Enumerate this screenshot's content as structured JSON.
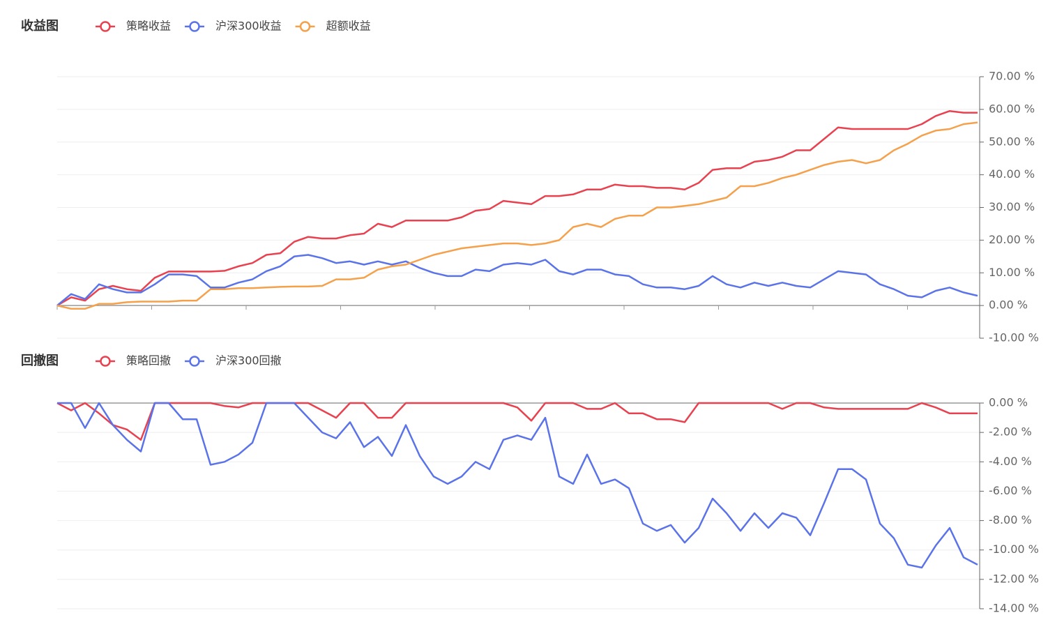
{
  "chart_data": [
    {
      "type": "line",
      "title": "收益图",
      "series": [
        {
          "name": "策略收益",
          "color": "#e8414f",
          "values": [
            0,
            2.5,
            1.5,
            5,
            6,
            5,
            4.5,
            8.5,
            10.4,
            10.4,
            10.4,
            10.4,
            10.6,
            12,
            13,
            15.5,
            16,
            19.5,
            21,
            20.5,
            20.5,
            21.5,
            22,
            25,
            24,
            26,
            26,
            26,
            26,
            27,
            29,
            29.5,
            32,
            31.5,
            31,
            33.5,
            33.5,
            34,
            35.5,
            35.5,
            37,
            36.5,
            36.5,
            36,
            36,
            35.5,
            37.5,
            41.5,
            42,
            42,
            44,
            44.5,
            45.5,
            47.5,
            47.5,
            51,
            54.5,
            54,
            54,
            54,
            54,
            54,
            55.5,
            58,
            59.5,
            59,
            59
          ]
        },
        {
          "name": "沪深300收益",
          "color": "#5b73e8",
          "values": [
            0,
            3.5,
            2,
            6.5,
            5,
            4,
            4,
            6.5,
            9.5,
            9.5,
            9,
            5.5,
            5.5,
            7,
            8,
            10.5,
            12,
            15,
            15.5,
            14.5,
            13,
            13.5,
            12.5,
            13.5,
            12.5,
            13.5,
            11.5,
            10,
            9,
            9,
            11,
            10.5,
            12.5,
            13,
            12.5,
            14,
            10.5,
            9.5,
            11,
            11,
            9.5,
            9,
            6.5,
            5.5,
            5.5,
            5,
            6,
            9,
            6.5,
            5.5,
            7,
            6,
            7,
            6,
            5.5,
            8,
            10.5,
            10,
            9.5,
            6.5,
            5,
            3,
            2.5,
            4.5,
            5.5,
            4,
            3
          ]
        },
        {
          "name": "超额收益",
          "color": "#f5a04a",
          "values": [
            0,
            -1,
            -1,
            0.5,
            0.5,
            1,
            1.2,
            1.2,
            1.2,
            1.5,
            1.5,
            5,
            5,
            5.3,
            5.3,
            5.5,
            5.7,
            5.8,
            5.8,
            6,
            8,
            8,
            8.5,
            11,
            12,
            12.5,
            14,
            15.5,
            16.5,
            17.5,
            18,
            18.5,
            19,
            19,
            18.5,
            19,
            20,
            24,
            25,
            24,
            26.5,
            27.5,
            27.5,
            30,
            30,
            30.5,
            31,
            32,
            33,
            36.5,
            36.5,
            37.5,
            39,
            40,
            41.5,
            43,
            44,
            44.5,
            43.5,
            44.5,
            47.5,
            49.5,
            52,
            53.5,
            54,
            55.5,
            56
          ]
        }
      ],
      "ylim": [
        -10,
        70
      ],
      "yticks": [
        {
          "value": -10,
          "label": "-10.00 %"
        },
        {
          "value": 0,
          "label": "0.00 %"
        },
        {
          "value": 10,
          "label": "10.00 %"
        },
        {
          "value": 20,
          "label": "20.00 %"
        },
        {
          "value": 30,
          "label": "30.00 %"
        },
        {
          "value": 40,
          "label": "40.00 %"
        },
        {
          "value": 50,
          "label": "50.00 %"
        },
        {
          "value": 60,
          "label": "60.00 %"
        },
        {
          "value": 70,
          "label": "70.00 %"
        }
      ],
      "grid": true
    },
    {
      "type": "line",
      "title": "回撤图",
      "series": [
        {
          "name": "策略回撤",
          "color": "#e8414f",
          "values": [
            0,
            -0.5,
            0,
            -0.7,
            -1.5,
            -1.8,
            -2.5,
            0,
            0,
            0,
            0,
            0,
            -0.2,
            -0.3,
            0,
            0,
            0,
            0,
            0,
            -0.5,
            -1,
            0,
            0,
            -1,
            -1,
            0,
            0,
            0,
            0,
            0,
            0,
            0,
            0,
            -0.3,
            -1.2,
            0,
            0,
            0,
            -0.4,
            -0.4,
            0,
            -0.7,
            -0.7,
            -1.1,
            -1.1,
            -1.3,
            0,
            0,
            0,
            0,
            0,
            0,
            -0.4,
            0,
            0,
            -0.3,
            -0.4,
            -0.4,
            -0.4,
            -0.4,
            -0.4,
            -0.4,
            0,
            -0.3,
            -0.7,
            -0.7,
            -0.7
          ]
        },
        {
          "name": "沪深300回撤",
          "color": "#5b73e8",
          "values": [
            0,
            0,
            -1.7,
            0,
            -1.5,
            -2.5,
            -3.3,
            0,
            0,
            -1.1,
            -1.1,
            -4.2,
            -4,
            -3.5,
            -2.7,
            0,
            0,
            0,
            -1,
            -2,
            -2.4,
            -1.3,
            -3,
            -2.3,
            -3.6,
            -1.5,
            -3.6,
            -5,
            -5.5,
            -5,
            -4,
            -4.5,
            -2.5,
            -2.2,
            -2.5,
            -1,
            -5,
            -5.5,
            -3.5,
            -5.5,
            -5.2,
            -5.8,
            -8.2,
            -8.7,
            -8.3,
            -9.5,
            -8.5,
            -6.5,
            -7.5,
            -8.7,
            -7.5,
            -8.5,
            -7.5,
            -7.8,
            -9,
            -6.8,
            -4.5,
            -4.5,
            -5.2,
            -8.2,
            -9.2,
            -11,
            -11.2,
            -9.7,
            -8.5,
            -10.5,
            -11
          ]
        }
      ],
      "ylim": [
        -14,
        0
      ],
      "yticks": [
        {
          "value": -14,
          "label": "-14.00 %"
        },
        {
          "value": -12,
          "label": "-12.00 %"
        },
        {
          "value": -10,
          "label": "-10.00 %"
        },
        {
          "value": -8,
          "label": "-8.00 %"
        },
        {
          "value": -6,
          "label": "-6.00 %"
        },
        {
          "value": -4,
          "label": "-4.00 %"
        },
        {
          "value": -2,
          "label": "-2.00 %"
        },
        {
          "value": 0,
          "label": "0.00 %"
        }
      ],
      "grid": true
    }
  ]
}
